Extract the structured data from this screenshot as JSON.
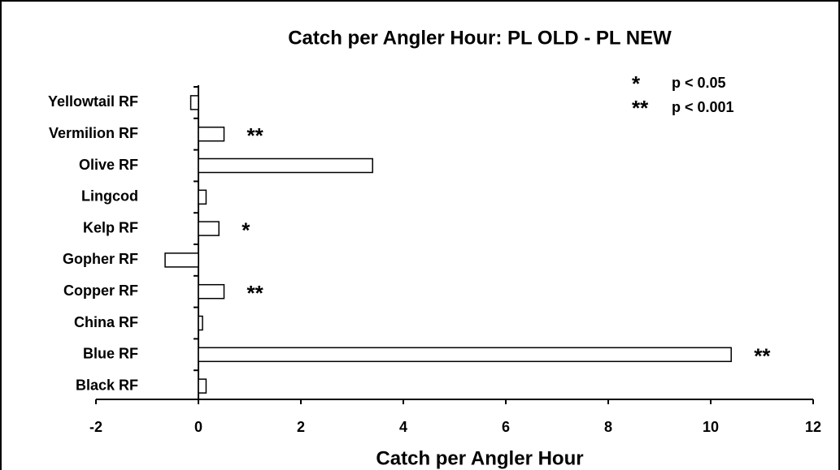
{
  "chart_data": {
    "type": "barh",
    "title": "Catch per Angler Hour: PL OLD - PL NEW",
    "x_label": "Catch per Angler Hour",
    "categories": [
      "Yellowtail RF",
      "Vermilion RF",
      "Olive RF",
      "Lingcod",
      "Kelp RF",
      "Gopher RF",
      "Copper RF",
      "China RF",
      "Blue RF",
      "Black RF"
    ],
    "values": [
      -0.15,
      0.5,
      3.4,
      0.15,
      0.4,
      -0.65,
      0.5,
      0.08,
      10.4,
      0.15
    ],
    "significance": [
      null,
      "**",
      null,
      null,
      "*",
      null,
      "**",
      null,
      "**",
      null
    ],
    "legend": [
      {
        "symbol": "*",
        "label": "p < 0.05"
      },
      {
        "symbol": "**",
        "label": "p < 0.001"
      }
    ],
    "color": "#ffffff",
    "xlim": [
      -2,
      12
    ],
    "xticks": [
      -2,
      0,
      2,
      4,
      6,
      8,
      10,
      12
    ],
    "grid": false
  }
}
